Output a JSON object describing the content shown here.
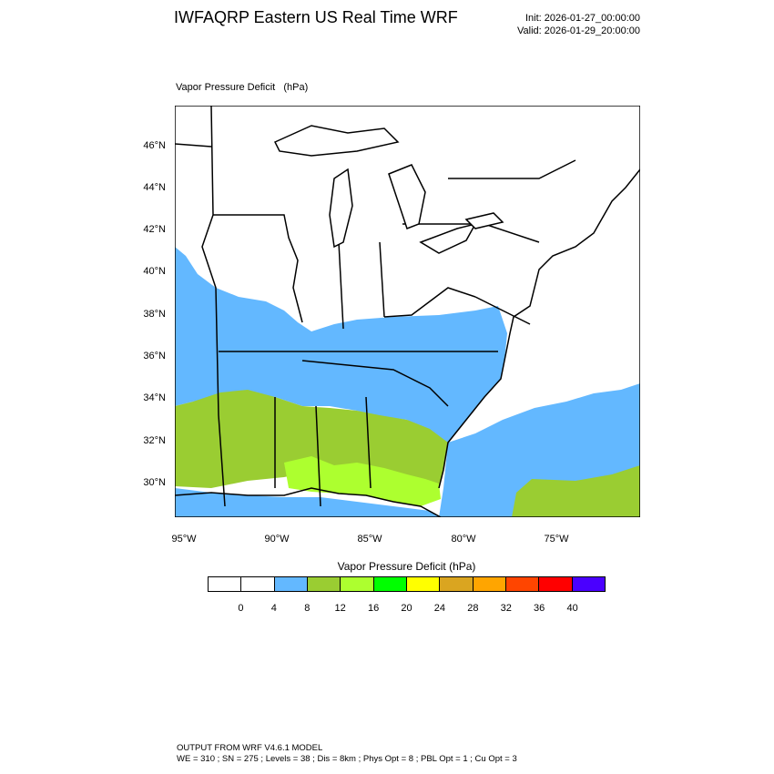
{
  "header": {
    "title": "IWFAQRP Eastern US Real Time WRF",
    "init": "Init: 2026-01-27_00:00:00",
    "valid": "Valid: 2026-01-29_20:00:00"
  },
  "field": {
    "label": "Vapor Pressure Deficit   (hPa)"
  },
  "map": {
    "lat_labels": [
      "46°N",
      "44°N",
      "42°N",
      "40°N",
      "38°N",
      "36°N",
      "34°N",
      "32°N",
      "30°N"
    ],
    "lon_labels": [
      "95°W",
      "90°W",
      "85°W",
      "80°W",
      "75°W"
    ],
    "colors": {
      "water": "#ffffff",
      "vpd_4_8": "#63b8ff",
      "vpd_8_12": "#9acd32",
      "vpd_12_16": "#adff2f",
      "boundary": "#000000"
    }
  },
  "colorbar": {
    "title": "Vapor Pressure Deficit  (hPa)",
    "labels": [
      "0",
      "4",
      "8",
      "12",
      "16",
      "20",
      "24",
      "28",
      "32",
      "36",
      "40"
    ],
    "colors": [
      "#ffffff",
      "#ffffff",
      "#63b8ff",
      "#9acd32",
      "#adff2f",
      "#00ff00",
      "#ffff00",
      "#daa520",
      "#ffa500",
      "#ff4500",
      "#ff0000",
      "#4a00ff"
    ]
  },
  "footer": {
    "line1": "OUTPUT FROM WRF V4.6.1 MODEL",
    "line2": "WE = 310 ; SN = 275 ; Levels = 38 ; Dis = 8km ; Phys Opt = 8 ; PBL Opt = 1 ; Cu Opt = 3"
  }
}
